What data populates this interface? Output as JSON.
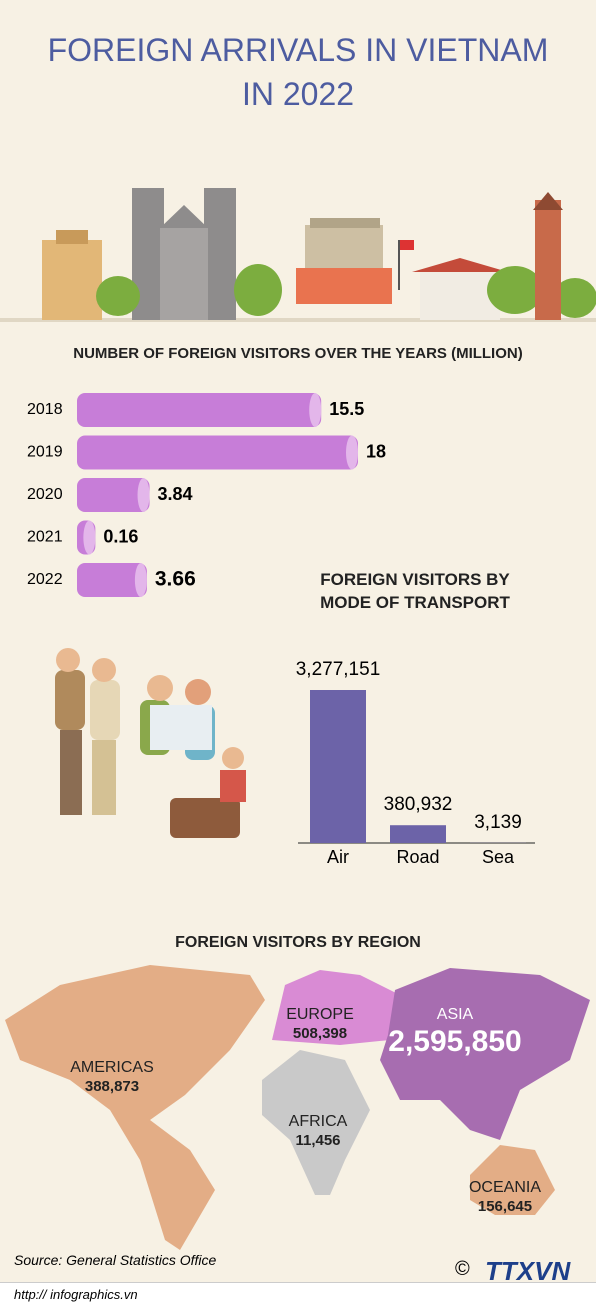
{
  "title": "FOREIGN ARRIVALS IN VIETNAM IN 2022",
  "chart_data": [
    {
      "type": "hbar",
      "title": "NUMBER OF FOREIGN VISITORS OVER THE YEARS (MILLION)",
      "categories": [
        "2018",
        "2019",
        "2020",
        "2021",
        "2022"
      ],
      "values": [
        15.5,
        18,
        3.84,
        0.16,
        3.66
      ],
      "color": "#c77dd8"
    },
    {
      "type": "bar",
      "title": "FOREIGN VISITORS BY MODE OF TRANSPORT",
      "categories": [
        "Air",
        "Road",
        "Sea"
      ],
      "values": [
        3277151,
        380932,
        3139
      ],
      "value_labels": [
        "3,277,151",
        "380,932",
        "3,139"
      ],
      "color": "#6c63a8"
    },
    {
      "type": "map",
      "title": "FOREIGN VISITORS BY REGION",
      "categories": [
        "AMERICAS",
        "EUROPE",
        "ASIA",
        "AFRICA",
        "OCEANIA"
      ],
      "values": [
        388873,
        508398,
        2595850,
        11456,
        156645
      ],
      "value_labels": [
        "388,873",
        "508,398",
        "2,595,850",
        "11,456",
        "156,645"
      ],
      "colors": [
        "#e3ad86",
        "#d98bd4",
        "#a76db0",
        "#c9c9c9",
        "#e3ad86"
      ]
    }
  ],
  "source": "Source: General Statistics Office",
  "url": "http:// infographics.vn",
  "logo": "TTXVN"
}
